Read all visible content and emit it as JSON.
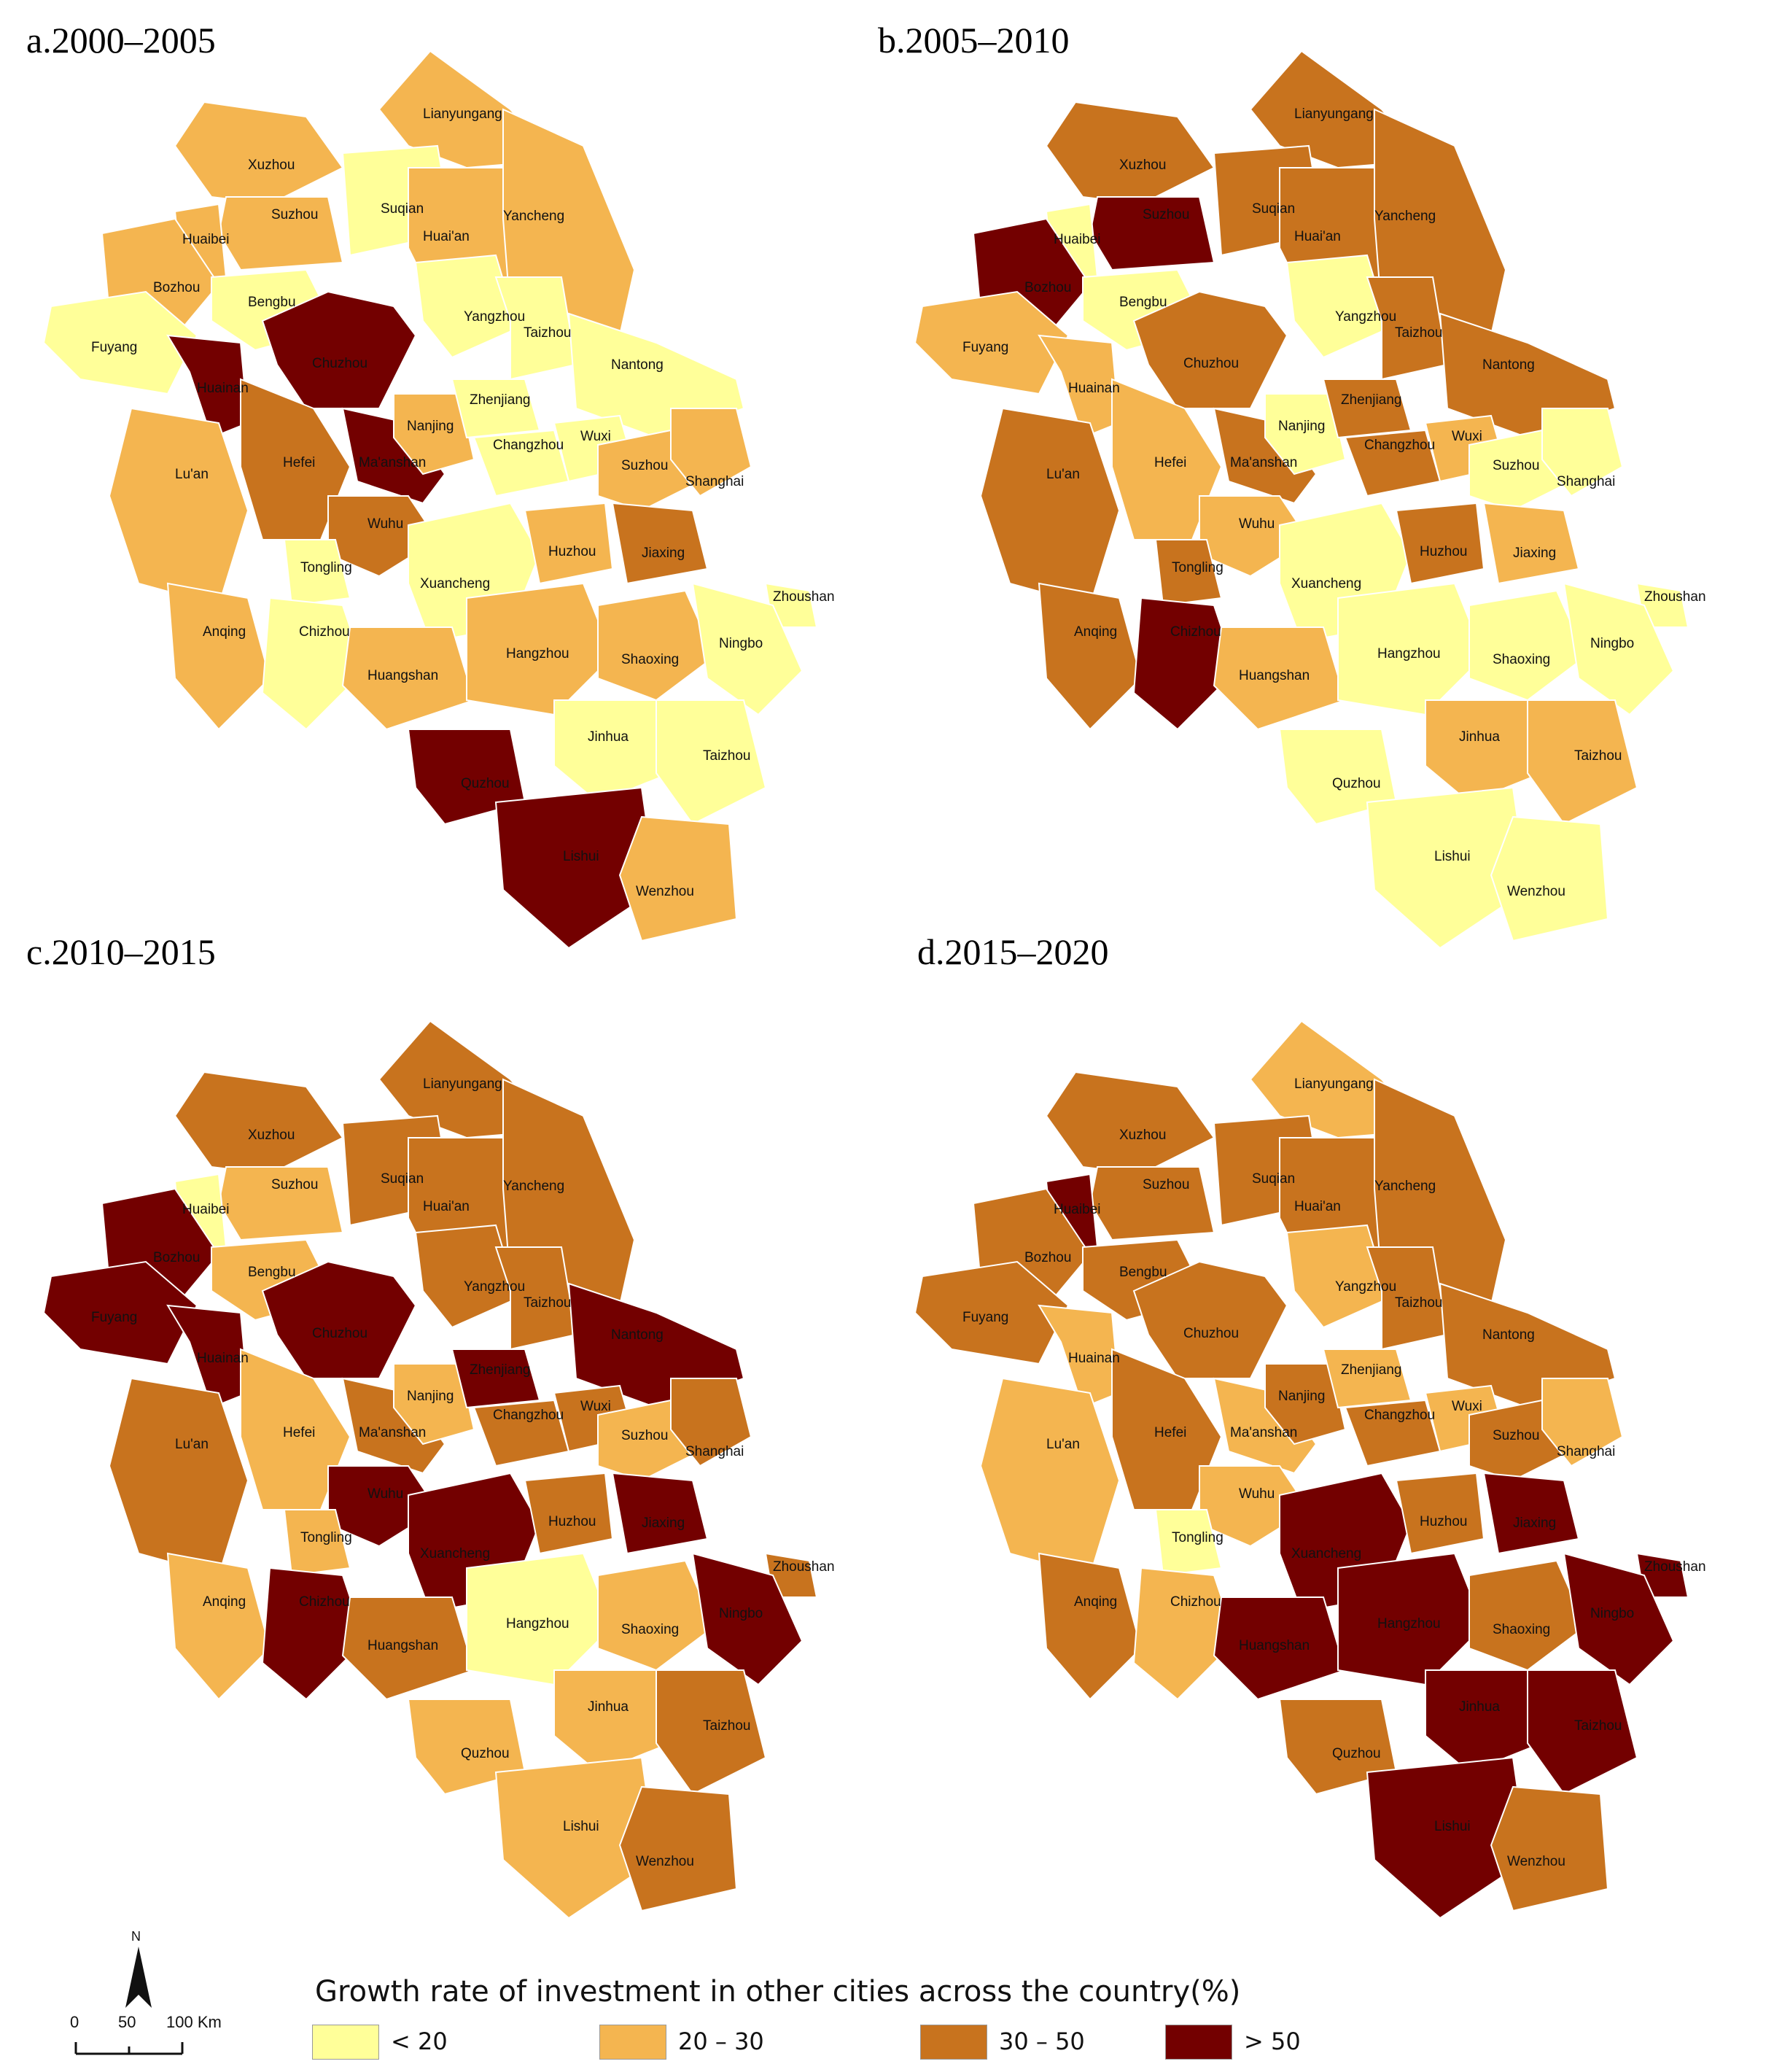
{
  "colors": {
    "lt20": "#ffff99",
    "20to30": "#f4b550",
    "30to50": "#c8731e",
    "gt50": "#730000",
    "outline": "#ffffff"
  },
  "panels": [
    {
      "title": "a.2000–2005",
      "values": {
        "Lianyungang": "20to30",
        "Xuzhou": "20to30",
        "Suzhou_AH": "20to30",
        "Suqian": "lt20",
        "Huaibei": "20to30",
        "Huai'an": "20to30",
        "Yancheng": "20to30",
        "Bozhou": "20to30",
        "Bengbu": "lt20",
        "Fuyang": "lt20",
        "Huainan": "gt50",
        "Chuzhou": "gt50",
        "Yangzhou": "lt20",
        "Taizhou_JS": "lt20",
        "Nantong": "lt20",
        "Lu'an": "20to30",
        "Hefei": "30to50",
        "Ma'anshan": "gt50",
        "Nanjing": "20to30",
        "Zhenjiang": "lt20",
        "Changzhou": "lt20",
        "Wuxi": "lt20",
        "Suzhou_JS": "20to30",
        "Shanghai": "20to30",
        "Wuhu": "30to50",
        "Tongling": "lt20",
        "Xuancheng": "lt20",
        "Huzhou": "20to30",
        "Jiaxing": "30to50",
        "Zhoushan": "lt20",
        "Anqing": "20to30",
        "Chizhou": "lt20",
        "Huangshan": "20to30",
        "Hangzhou": "20to30",
        "Shaoxing": "20to30",
        "Ningbo": "lt20",
        "Jinhua": "lt20",
        "Quzhou": "gt50",
        "Taizhou_ZJ": "lt20",
        "Lishui": "gt50",
        "Wenzhou": "20to30"
      }
    },
    {
      "title": "b.2005–2010",
      "values": {
        "Lianyungang": "30to50",
        "Xuzhou": "30to50",
        "Suzhou_AH": "gt50",
        "Suqian": "30to50",
        "Huaibei": "lt20",
        "Huai'an": "30to50",
        "Yancheng": "30to50",
        "Bozhou": "gt50",
        "Bengbu": "lt20",
        "Fuyang": "20to30",
        "Huainan": "20to30",
        "Chuzhou": "30to50",
        "Yangzhou": "lt20",
        "Taizhou_JS": "30to50",
        "Nantong": "30to50",
        "Lu'an": "30to50",
        "Hefei": "20to30",
        "Ma'anshan": "30to50",
        "Nanjing": "lt20",
        "Zhenjiang": "30to50",
        "Changzhou": "30to50",
        "Wuxi": "20to30",
        "Suzhou_JS": "lt20",
        "Shanghai": "lt20",
        "Wuhu": "20to30",
        "Tongling": "30to50",
        "Xuancheng": "lt20",
        "Huzhou": "30to50",
        "Jiaxing": "20to30",
        "Zhoushan": "lt20",
        "Anqing": "30to50",
        "Chizhou": "gt50",
        "Huangshan": "20to30",
        "Hangzhou": "lt20",
        "Shaoxing": "lt20",
        "Ningbo": "lt20",
        "Jinhua": "20to30",
        "Quzhou": "lt20",
        "Taizhou_ZJ": "20to30",
        "Lishui": "lt20",
        "Wenzhou": "lt20"
      }
    },
    {
      "title": "c.2010–2015",
      "values": {
        "Lianyungang": "30to50",
        "Xuzhou": "30to50",
        "Suzhou_AH": "20to30",
        "Suqian": "30to50",
        "Huaibei": "lt20",
        "Huai'an": "30to50",
        "Yancheng": "30to50",
        "Bozhou": "gt50",
        "Bengbu": "20to30",
        "Fuyang": "gt50",
        "Huainan": "gt50",
        "Chuzhou": "gt50",
        "Yangzhou": "30to50",
        "Taizhou_JS": "30to50",
        "Nantong": "gt50",
        "Lu'an": "30to50",
        "Hefei": "20to30",
        "Ma'anshan": "30to50",
        "Nanjing": "20to30",
        "Zhenjiang": "gt50",
        "Changzhou": "30to50",
        "Wuxi": "30to50",
        "Suzhou_JS": "20to30",
        "Shanghai": "30to50",
        "Wuhu": "gt50",
        "Tongling": "20to30",
        "Xuancheng": "gt50",
        "Huzhou": "30to50",
        "Jiaxing": "gt50",
        "Zhoushan": "30to50",
        "Anqing": "20to30",
        "Chizhou": "gt50",
        "Huangshan": "30to50",
        "Hangzhou": "lt20",
        "Shaoxing": "20to30",
        "Ningbo": "gt50",
        "Jinhua": "20to30",
        "Quzhou": "20to30",
        "Taizhou_ZJ": "30to50",
        "Lishui": "20to30",
        "Wenzhou": "30to50"
      }
    },
    {
      "title": "d.2015–2020",
      "values": {
        "Lianyungang": "20to30",
        "Xuzhou": "30to50",
        "Suzhou_AH": "30to50",
        "Suqian": "30to50",
        "Huaibei": "gt50",
        "Huai'an": "30to50",
        "Yancheng": "30to50",
        "Bozhou": "30to50",
        "Bengbu": "30to50",
        "Fuyang": "30to50",
        "Huainan": "20to30",
        "Chuzhou": "30to50",
        "Yangzhou": "20to30",
        "Taizhou_JS": "30to50",
        "Nantong": "30to50",
        "Lu'an": "20to30",
        "Hefei": "30to50",
        "Ma'anshan": "20to30",
        "Nanjing": "30to50",
        "Zhenjiang": "20to30",
        "Changzhou": "30to50",
        "Wuxi": "20to30",
        "Suzhou_JS": "30to50",
        "Shanghai": "20to30",
        "Wuhu": "20to30",
        "Tongling": "lt20",
        "Xuancheng": "gt50",
        "Huzhou": "30to50",
        "Jiaxing": "gt50",
        "Zhoushan": "gt50",
        "Anqing": "30to50",
        "Chizhou": "20to30",
        "Huangshan": "gt50",
        "Hangzhou": "gt50",
        "Shaoxing": "30to50",
        "Ningbo": "gt50",
        "Jinhua": "gt50",
        "Quzhou": "30to50",
        "Taizhou_ZJ": "gt50",
        "Lishui": "gt50",
        "Wenzhou": "30to50"
      }
    }
  ],
  "city_labels": {
    "Lianyungang": "Lianyungang",
    "Xuzhou": "Xuzhou",
    "Suzhou_AH": "Suzhou",
    "Suqian": "Suqian",
    "Huaibei": "Huaibei",
    "Huai'an": "Huai'an",
    "Yancheng": "Yancheng",
    "Bozhou": "Bozhou",
    "Bengbu": "Bengbu",
    "Fuyang": "Fuyang",
    "Huainan": "Huainan",
    "Chuzhou": "Chuzhou",
    "Yangzhou": "Yangzhou",
    "Taizhou_JS": "Taizhou",
    "Nantong": "Nantong",
    "Lu'an": "Lu'an",
    "Hefei": "Hefei",
    "Ma'anshan": "Ma'anshan",
    "Nanjing": "Nanjing",
    "Zhenjiang": "Zhenjiang",
    "Changzhou": "Changzhou",
    "Wuxi": "Wuxi",
    "Suzhou_JS": "Suzhou",
    "Shanghai": "Shanghai",
    "Wuhu": "Wuhu",
    "Tongling": "Tongling",
    "Xuancheng": "Xuancheng",
    "Huzhou": "Huzhou",
    "Jiaxing": "Jiaxing",
    "Zhoushan": "Zhoushan",
    "Anqing": "Anqing",
    "Chizhou": "Chizhou",
    "Huangshan": "Huangshan",
    "Hangzhou": "Hangzhou",
    "Shaoxing": "Shaoxing",
    "Ningbo": "Ningbo",
    "Jinhua": "Jinhua",
    "Quzhou": "Quzhou",
    "Taizhou_ZJ": "Taizhou",
    "Lishui": "Lishui",
    "Wenzhou": "Wenzhou"
  },
  "legend": {
    "title": "Growth rate of investment in other cities across the country(%)",
    "items": [
      {
        "key": "lt20",
        "label": "< 20"
      },
      {
        "key": "20to30",
        "label": "20 – 30"
      },
      {
        "key": "30to50",
        "label": "30 – 50"
      },
      {
        "key": "gt50",
        "label": "> 50"
      }
    ]
  },
  "north_arrow": {
    "label": "N"
  },
  "scale_bar": {
    "tick_0": "0",
    "tick_1": "50",
    "tick_2": "100 Km"
  }
}
